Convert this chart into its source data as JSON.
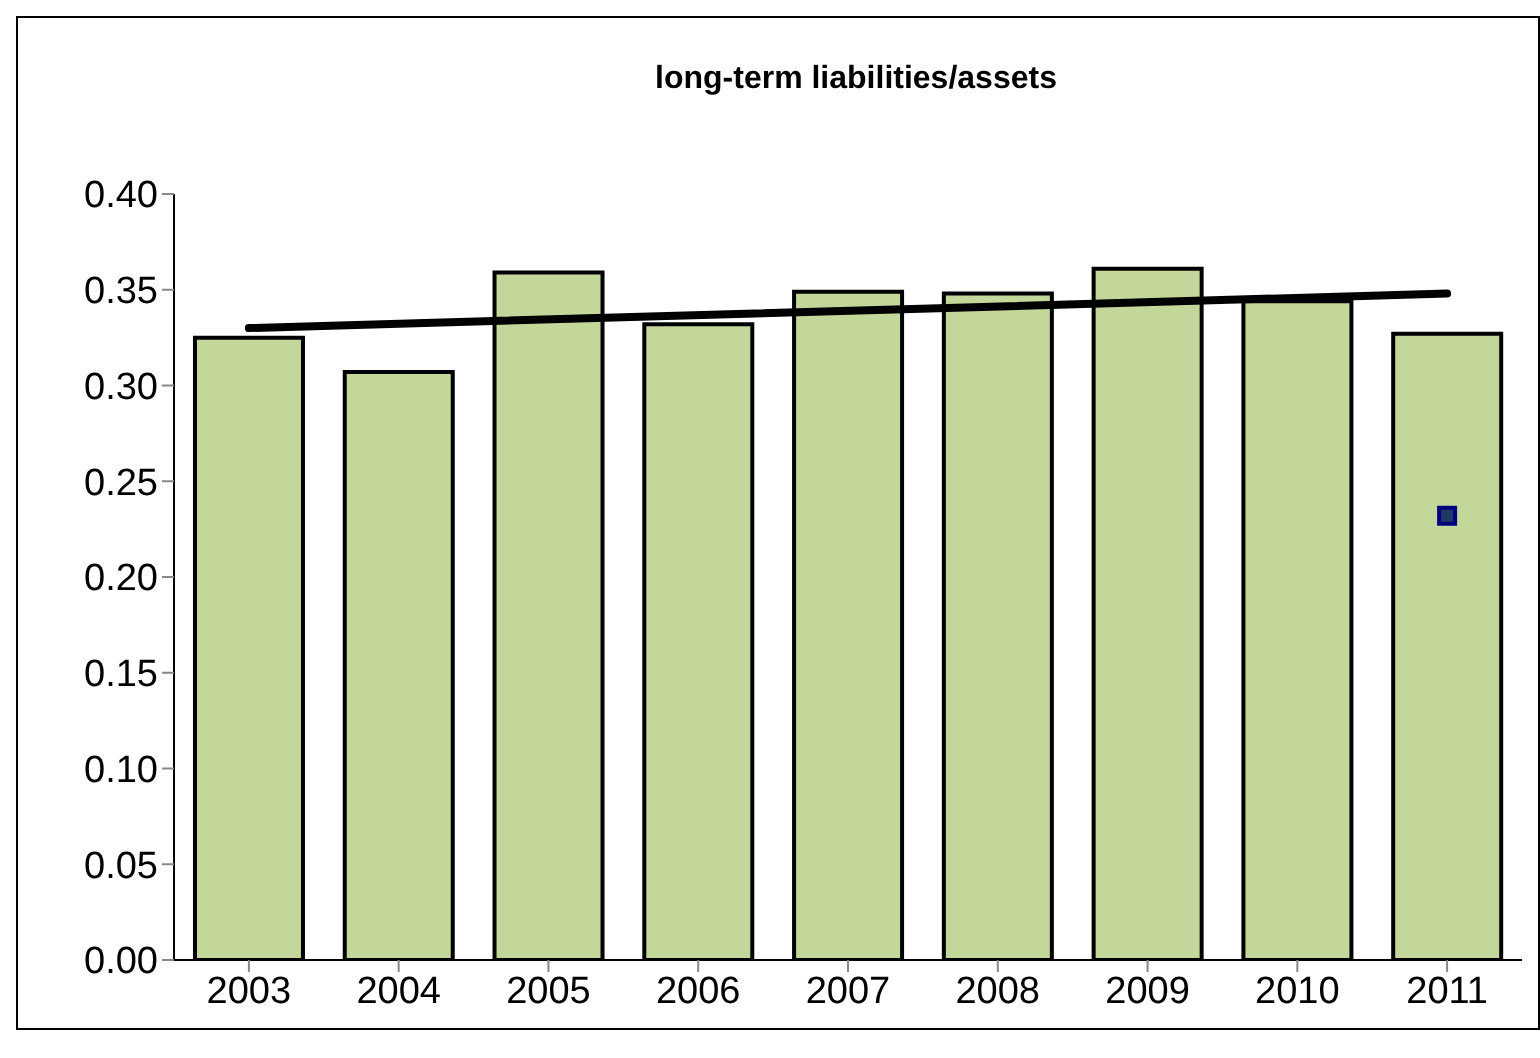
{
  "chart_data": {
    "type": "bar",
    "title": "long-term liabilities/assets",
    "categories": [
      "2003",
      "2004",
      "2005",
      "2006",
      "2007",
      "2008",
      "2009",
      "2010",
      "2011"
    ],
    "series": [
      {
        "color": "#c4d79b",
        "values": [
          0.325,
          0.307,
          0.359,
          0.332,
          0.349,
          0.348,
          0.361,
          0.344,
          0.327
        ]
      },
      {
        "type": "line",
        "color": "#000000",
        "values": [
          0.33,
          null,
          null,
          null,
          null,
          null,
          null,
          null,
          0.348
        ]
      },
      {
        "type": "scatter",
        "color": "#1f3864",
        "marker": "square",
        "values": [
          null,
          null,
          null,
          null,
          null,
          null,
          null,
          null,
          0.232
        ]
      }
    ],
    "ylim": [
      0,
      0.4
    ],
    "yticks": [
      {
        "value": 0,
        "label": "0.00"
      },
      {
        "value": 0.05,
        "label": "0.05"
      },
      {
        "value": 0.1,
        "label": "0.10"
      },
      {
        "value": 0.15,
        "label": "0.15"
      },
      {
        "value": 0.2,
        "label": "0.20"
      },
      {
        "value": 0.25,
        "label": "0.25"
      },
      {
        "value": 0.3,
        "label": "0.30"
      },
      {
        "value": 0.35,
        "label": "0.35"
      },
      {
        "value": 0.4,
        "label": "0.40"
      }
    ],
    "grid": false,
    "legend": false
  }
}
